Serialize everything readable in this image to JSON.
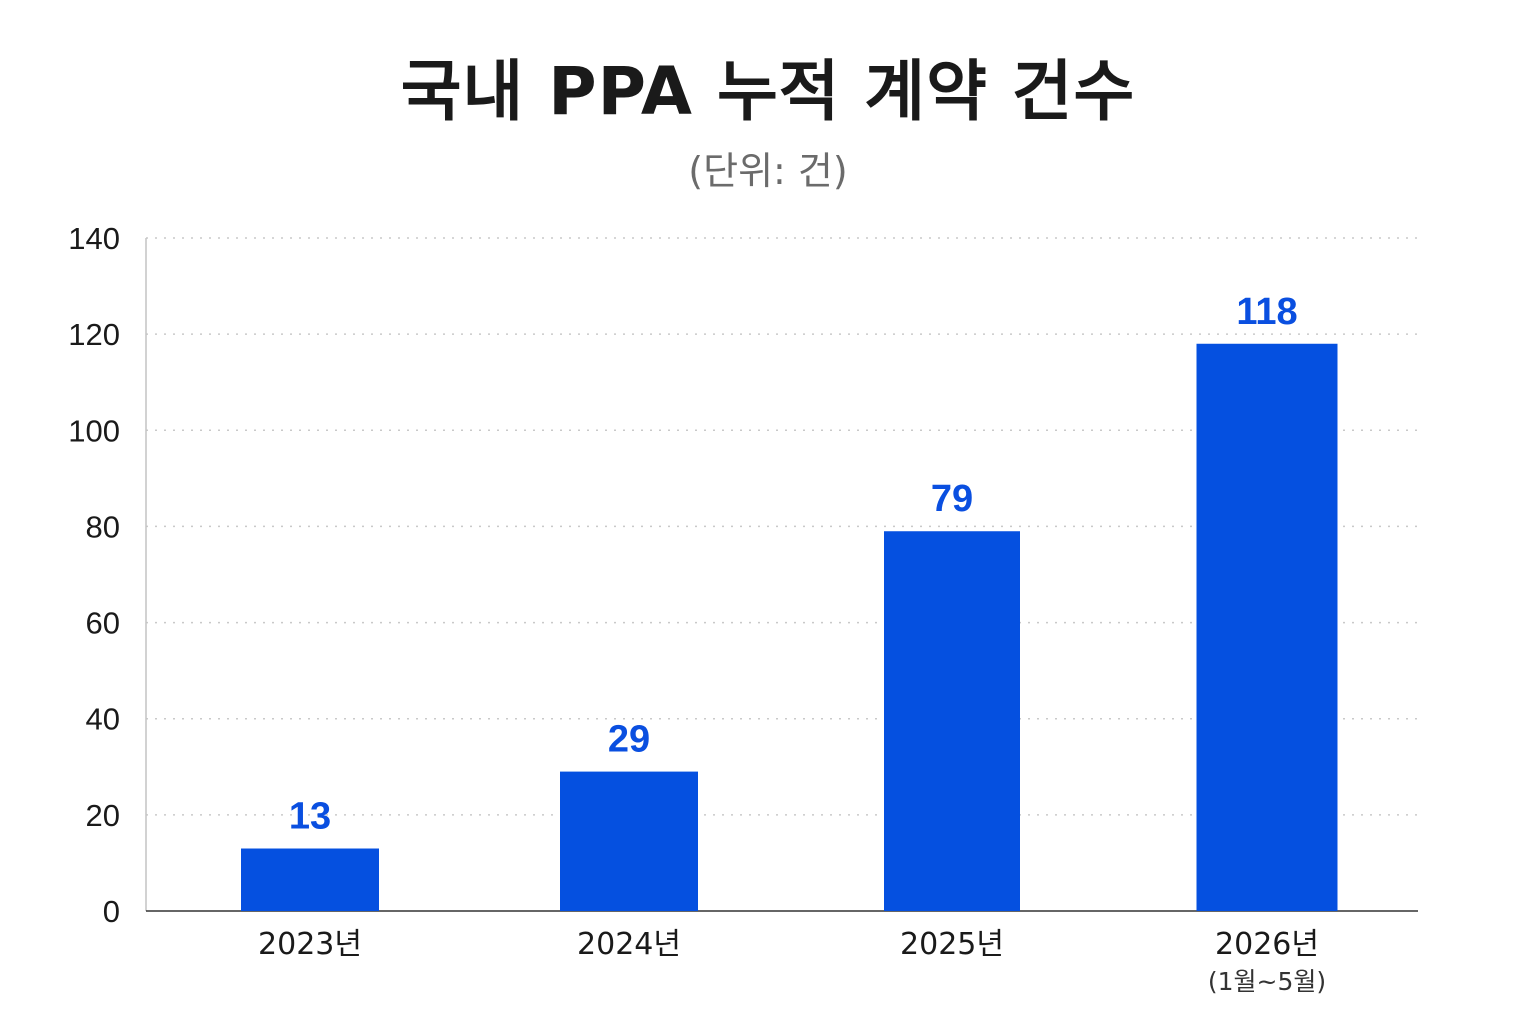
{
  "chart_data": {
    "type": "bar",
    "title": "국내 PPA 누적 계약 건수",
    "subtitle": "(단위: 건)",
    "categories": [
      "2023년",
      "2024년",
      "2025년",
      "2026년"
    ],
    "category_sublabels": [
      "",
      "",
      "",
      "(1월~5월)"
    ],
    "values": [
      13,
      29,
      79,
      118
    ],
    "value_labels": [
      "13",
      "29",
      "79",
      "118"
    ],
    "ylim": [
      0,
      140
    ],
    "yticks": [
      0,
      20,
      40,
      60,
      80,
      100,
      120,
      140
    ],
    "ytick_labels": [
      "0",
      "20",
      "40",
      "60",
      "80",
      "100",
      "120",
      "140"
    ],
    "xlabel": "",
    "ylabel": "",
    "grid": true,
    "bar_color": "#0550e0",
    "label_color": "#0a4fe0"
  }
}
